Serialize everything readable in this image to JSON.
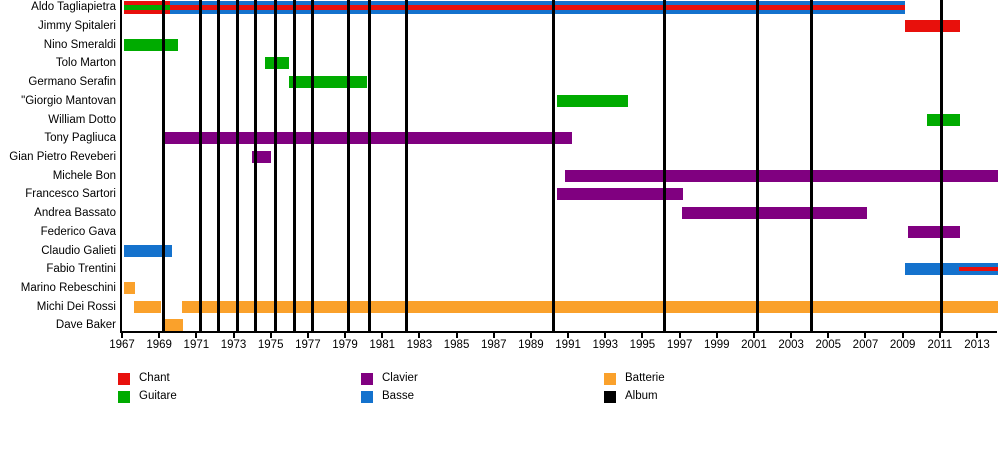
{
  "chart_data": {
    "type": "timeline",
    "x_axis": {
      "min": 1967,
      "max": 2014,
      "ticks": [
        1967,
        1969,
        1971,
        1973,
        1975,
        1977,
        1979,
        1981,
        1983,
        1985,
        1987,
        1989,
        1991,
        1993,
        1995,
        1997,
        1999,
        2001,
        2003,
        2005,
        2007,
        2009,
        2011,
        2013
      ]
    },
    "rows": [
      {
        "name": "Aldo Tagliapietra",
        "segments": [
          {
            "start": 1967.0,
            "end": 1969.5,
            "roles": [
              "chant",
              "guitare",
              "chant"
            ]
          },
          {
            "start": 1969.5,
            "end": 2009.0,
            "roles": [
              "basse",
              "chant",
              "basse"
            ]
          }
        ]
      },
      {
        "name": "Jimmy Spitaleri",
        "segments": [
          {
            "start": 2009.0,
            "end": 2012.0,
            "roles": [
              "chant"
            ]
          }
        ]
      },
      {
        "name": "Nino Smeraldi",
        "segments": [
          {
            "start": 1967.0,
            "end": 1969.9,
            "roles": [
              "guitare"
            ]
          }
        ]
      },
      {
        "name": "Tolo Marton",
        "segments": [
          {
            "start": 1974.6,
            "end": 1975.9,
            "roles": [
              "guitare"
            ]
          }
        ]
      },
      {
        "name": "Germano Serafin",
        "segments": [
          {
            "start": 1975.9,
            "end": 1980.1,
            "roles": [
              "guitare"
            ]
          }
        ]
      },
      {
        "name": "\"Giorgio Mantovan",
        "segments": [
          {
            "start": 1990.3,
            "end": 1994.1,
            "roles": [
              "guitare"
            ]
          }
        ]
      },
      {
        "name": "William Dotto",
        "segments": [
          {
            "start": 2010.2,
            "end": 2012.0,
            "roles": [
              "guitare"
            ]
          }
        ]
      },
      {
        "name": "Tony Pagliuca",
        "segments": [
          {
            "start": 1969.1,
            "end": 1991.1,
            "roles": [
              "clavier"
            ]
          }
        ]
      },
      {
        "name": "Gian Pietro Reveberi",
        "segments": [
          {
            "start": 1973.9,
            "end": 1974.9,
            "roles": [
              "clavier"
            ]
          }
        ]
      },
      {
        "name": "Michele Bon",
        "segments": [
          {
            "start": 1990.7,
            "end": 2014.0,
            "roles": [
              "clavier"
            ]
          }
        ]
      },
      {
        "name": "Francesco Sartori",
        "segments": [
          {
            "start": 1990.3,
            "end": 1997.1,
            "roles": [
              "clavier"
            ]
          }
        ]
      },
      {
        "name": "Andrea Bassato",
        "segments": [
          {
            "start": 1997.0,
            "end": 2007.0,
            "roles": [
              "clavier"
            ]
          }
        ]
      },
      {
        "name": "Federico Gava",
        "segments": [
          {
            "start": 2009.2,
            "end": 2012.0,
            "roles": [
              "clavier"
            ]
          }
        ]
      },
      {
        "name": "Claudio Galieti",
        "segments": [
          {
            "start": 1967.0,
            "end": 1969.6,
            "roles": [
              "basse"
            ]
          }
        ]
      },
      {
        "name": "Fabio Trentini",
        "segments": [
          {
            "start": 2009.0,
            "end": 2014.0,
            "roles": [
              "basse"
            ]
          }
        ],
        "overlays": [
          {
            "start": 2011.9,
            "end": 2014.0,
            "role": "chant"
          }
        ]
      },
      {
        "name": "Marino Rebeschini",
        "segments": [
          {
            "start": 1967.0,
            "end": 1967.6,
            "roles": [
              "batterie"
            ]
          }
        ]
      },
      {
        "name": "Michi Dei Rossi",
        "segments": [
          {
            "start": 1967.55,
            "end": 1969.0,
            "roles": [
              "batterie"
            ]
          },
          {
            "start": 1970.1,
            "end": 2014.0,
            "roles": [
              "batterie"
            ]
          }
        ]
      },
      {
        "name": "Dave Baker",
        "segments": [
          {
            "start": 1969.05,
            "end": 1970.15,
            "roles": [
              "batterie"
            ]
          }
        ]
      }
    ],
    "album_lines": [
      1969.15,
      1971.1,
      1972.1,
      1973.1,
      1974.1,
      1975.15,
      1976.15,
      1977.15,
      1979.1,
      1980.2,
      1982.2,
      1990.1,
      1996.1,
      2001.1,
      2004.0,
      2011.0
    ],
    "legend": [
      {
        "label": "Chant",
        "role": "chant"
      },
      {
        "label": "Guitare",
        "role": "guitare"
      },
      {
        "label": "Clavier",
        "role": "clavier"
      },
      {
        "label": "Basse",
        "role": "basse"
      },
      {
        "label": "Batterie",
        "role": "batterie"
      },
      {
        "label": "Album",
        "role": "album"
      }
    ],
    "role_colors": {
      "chant": "#e8100c",
      "guitare": "#00ab00",
      "clavier": "#800080",
      "basse": "#1472cd",
      "batterie": "#faa12b",
      "album": "#000000"
    }
  }
}
